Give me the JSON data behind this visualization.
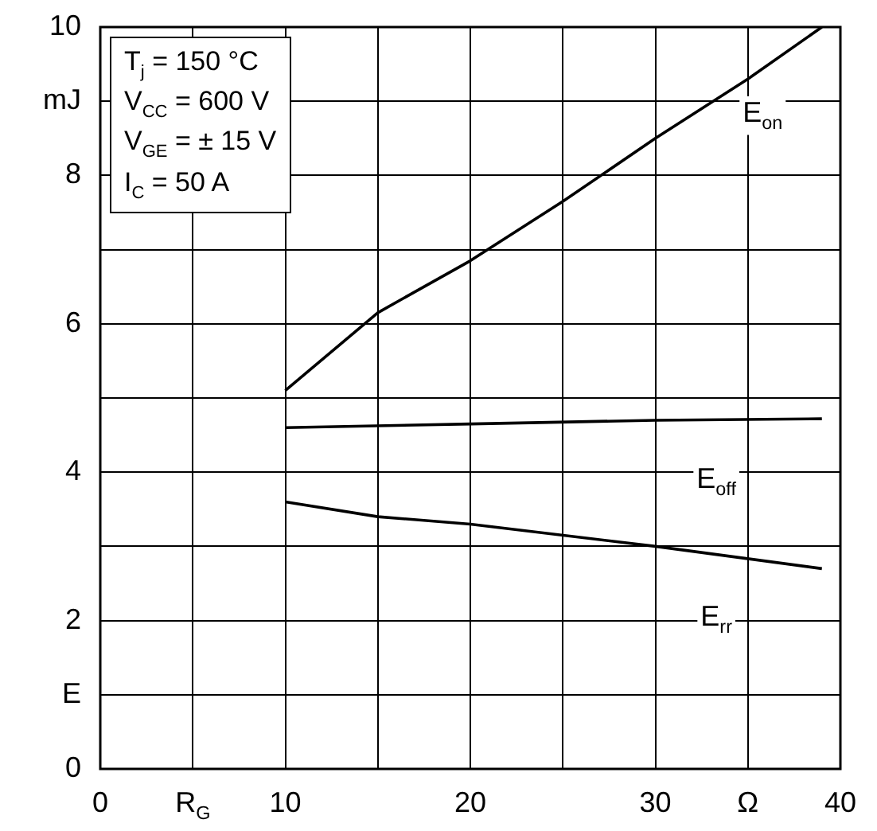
{
  "chart_data": {
    "type": "line",
    "annotations": [
      "T$_{j}$ = 150 °C",
      "V$_{CC}$ = 600 V",
      "V$_{GE}$ = ± 15 V",
      "I$_{C}$ = 50 A"
    ],
    "series": [
      {
        "name": "E$_{on}$",
        "color": "#000000",
        "x": [
          10,
          15,
          20,
          25,
          30,
          35,
          39
        ],
        "values": [
          5.1,
          6.15,
          6.85,
          7.65,
          8.5,
          9.3,
          10.0
        ]
      },
      {
        "name": "E$_{off}$",
        "color": "#000000",
        "x": [
          10,
          20,
          30,
          39
        ],
        "values": [
          4.6,
          4.65,
          4.7,
          4.72
        ]
      },
      {
        "name": "E$_{rr}$",
        "color": "#000000",
        "x": [
          10,
          15,
          20,
          30,
          39
        ],
        "values": [
          3.6,
          3.4,
          3.3,
          3.0,
          2.7
        ]
      }
    ],
    "xlim": [
      0,
      40
    ],
    "xticks": [
      0,
      {
        "value": 5,
        "label": "R$_{G}$"
      },
      10,
      {
        "value": 15,
        "label": null
      },
      20,
      {
        "value": 25,
        "label": null
      },
      30,
      {
        "value": 35,
        "label": "Ω"
      },
      40
    ],
    "ylim": [
      0,
      10
    ],
    "yticks": [
      0,
      {
        "value": 1,
        "label": "E"
      },
      2,
      {
        "value": 3,
        "label": null
      },
      4,
      {
        "value": 5,
        "label": null
      },
      6,
      {
        "value": 7,
        "label": null
      },
      8,
      {
        "value": 9,
        "label": "mJ"
      },
      10
    ],
    "grid": true,
    "legend": false,
    "marker": "none",
    "line_style": "solid"
  }
}
